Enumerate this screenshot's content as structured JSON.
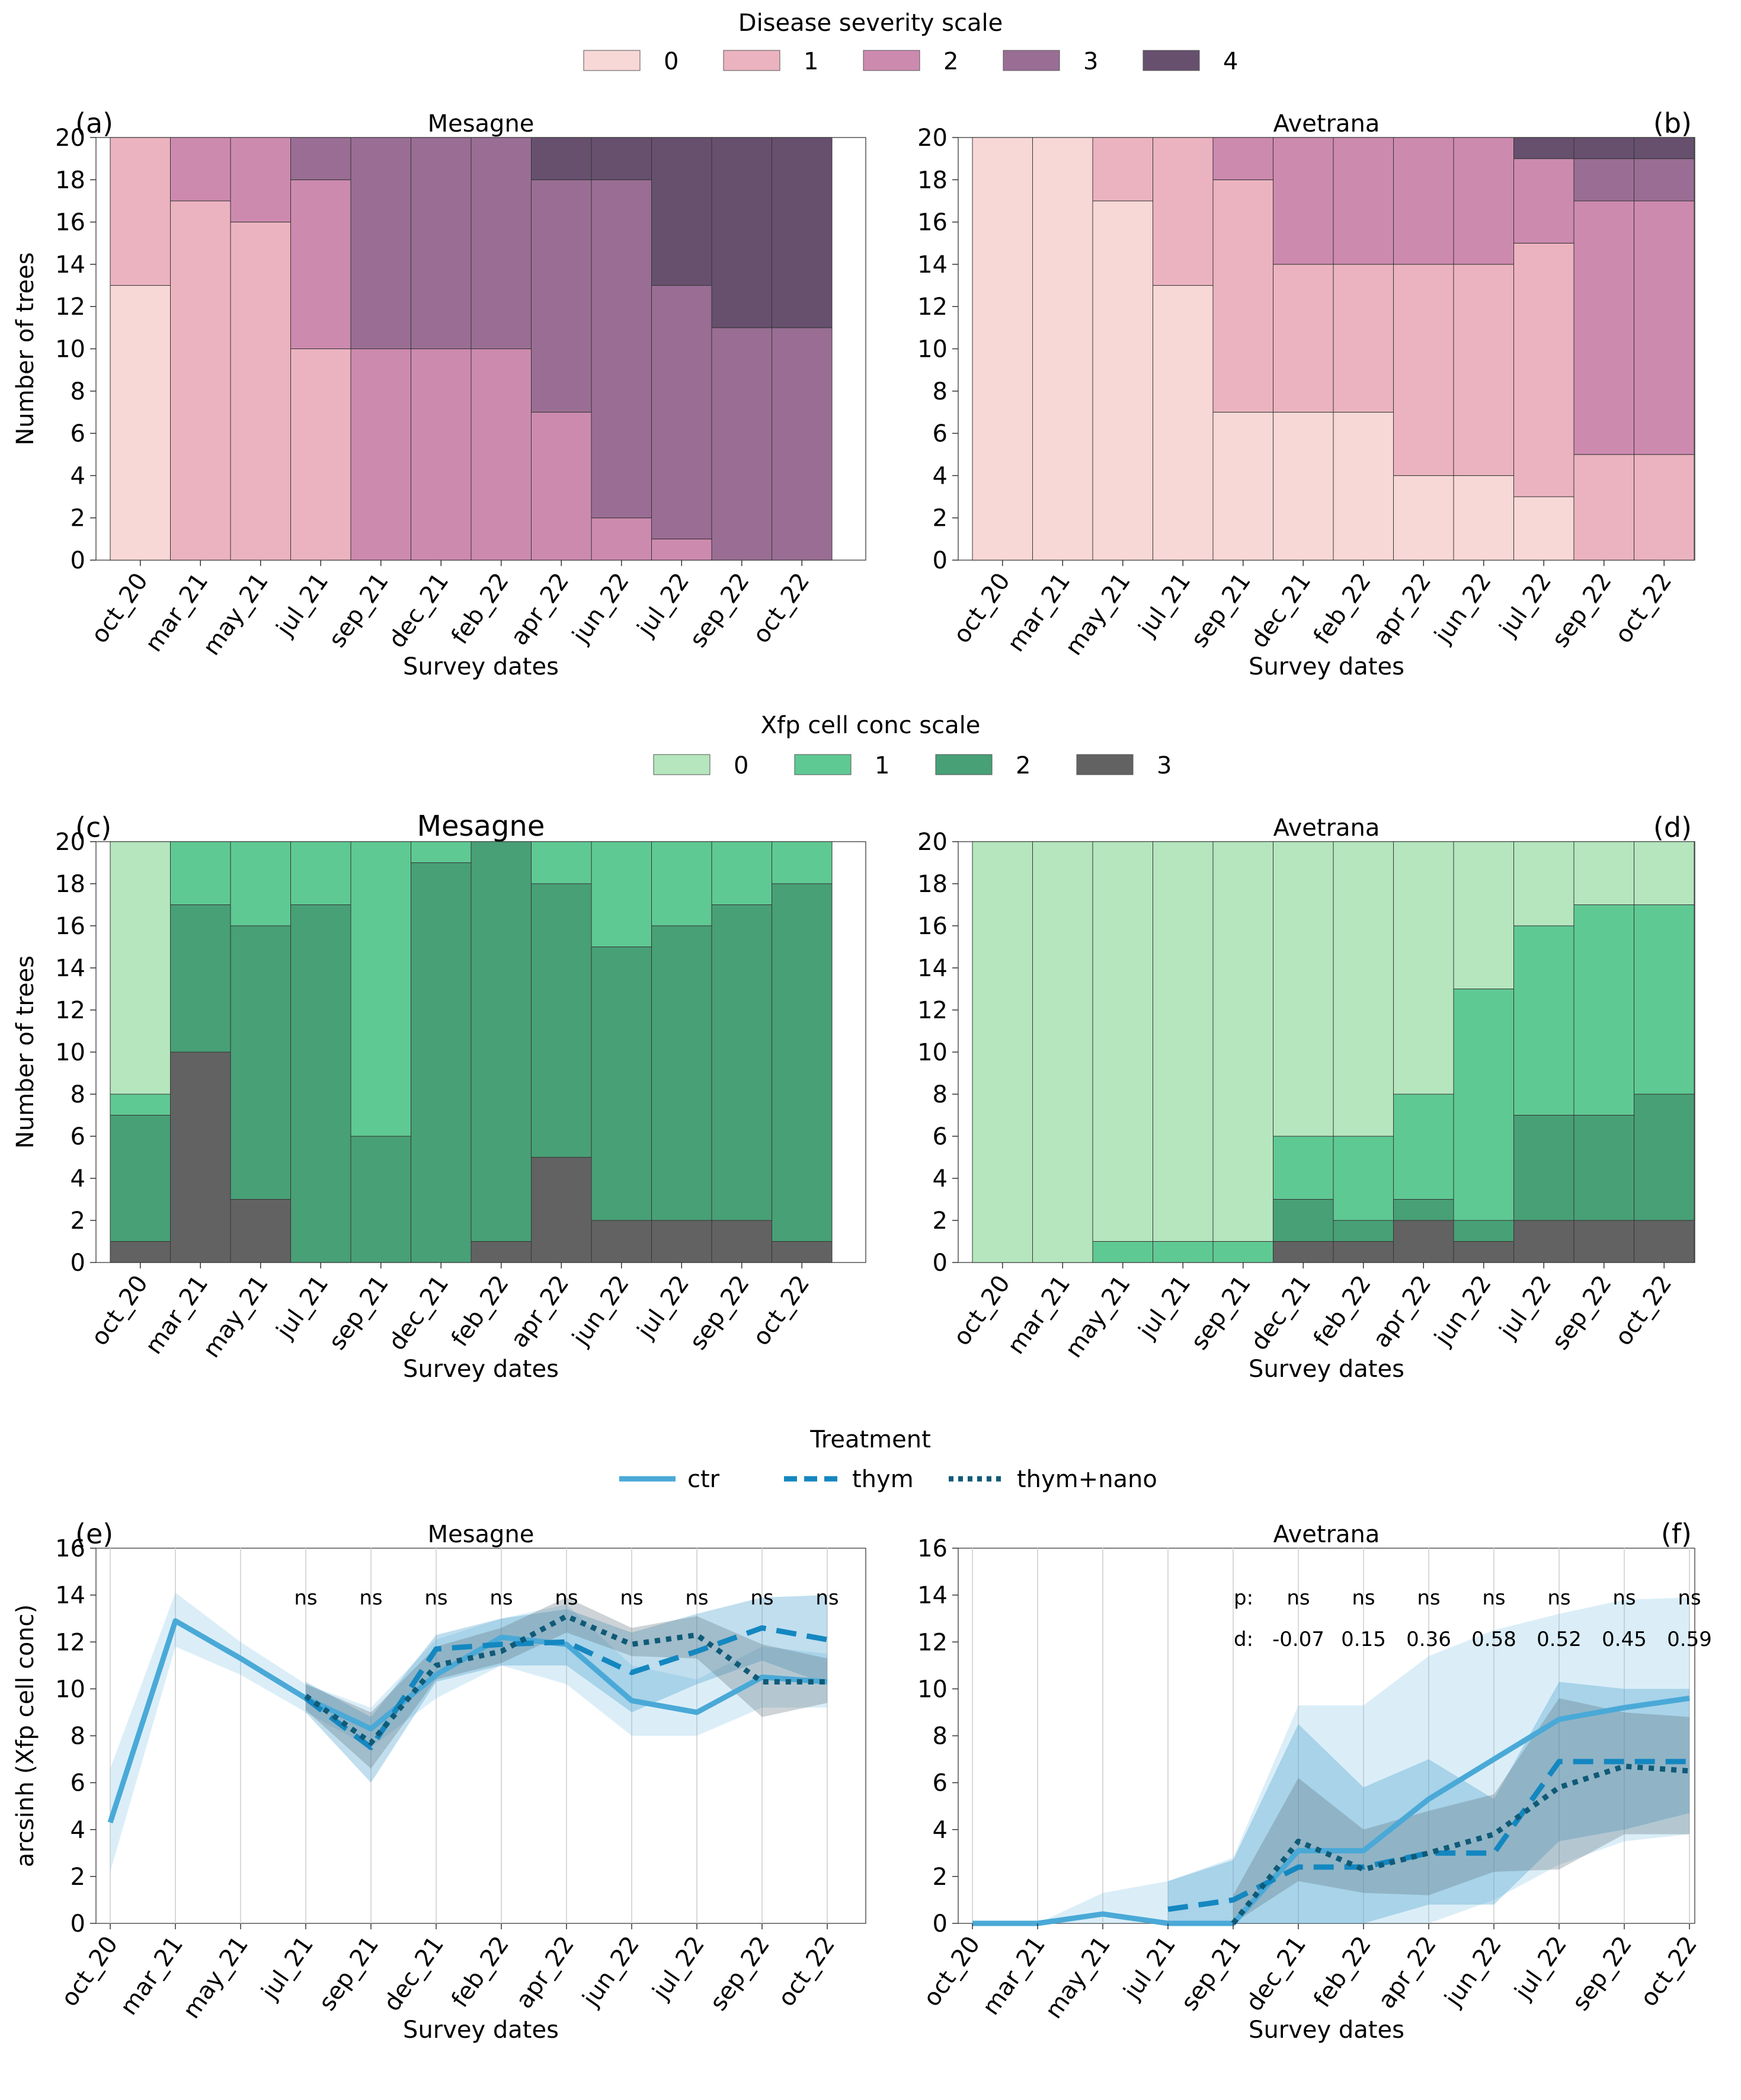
{
  "legends": {
    "severity": {
      "title": "Disease severity scale",
      "labels": [
        "0",
        "1",
        "2",
        "3",
        "4"
      ],
      "colors": [
        "#f7d8d6",
        "#ebb3bf",
        "#cd8aaf",
        "#9a6e94",
        "#66506e"
      ]
    },
    "xfp": {
      "title": "Xfp cell conc scale",
      "labels": [
        "0",
        "1",
        "2",
        "3"
      ],
      "colors": [
        "#b5e6be",
        "#5fc993",
        "#48a076",
        "#626262"
      ]
    },
    "treatment": {
      "title": "Treatment",
      "labels": [
        "ctr",
        "thym",
        "thym+nano"
      ],
      "colors": [
        "#4aa9d7",
        "#1487c0",
        "#0f5a77"
      ]
    }
  },
  "chart_data": [
    {
      "id": "a",
      "type": "bar",
      "stacked": true,
      "panel_label": "(a)",
      "title": "Mesagne",
      "xlabel": "Survey dates",
      "ylabel": "Number of trees",
      "ylim": [
        0,
        20
      ],
      "yticks": [
        "0",
        "2",
        "4",
        "6",
        "8",
        "10",
        "12",
        "14",
        "16",
        "18",
        "20"
      ],
      "categories": [
        "oct_20",
        "mar_21",
        "may_21",
        "jul_21",
        "sep_21",
        "dec_21",
        "feb_22",
        "apr_22",
        "jun_22",
        "jul_22",
        "sep_22",
        "oct_22"
      ],
      "series": [
        {
          "name": "0",
          "values": [
            13,
            0,
            0,
            0,
            0,
            0,
            0,
            0,
            0,
            0,
            0,
            0
          ]
        },
        {
          "name": "1",
          "values": [
            7,
            17,
            16,
            10,
            0,
            0,
            0,
            0,
            0,
            0,
            0,
            0
          ]
        },
        {
          "name": "2",
          "values": [
            0,
            3,
            4,
            8,
            10,
            10,
            10,
            7,
            2,
            1,
            0,
            0
          ]
        },
        {
          "name": "3",
          "values": [
            0,
            0,
            0,
            2,
            10,
            10,
            10,
            11,
            16,
            12,
            11,
            11
          ]
        },
        {
          "name": "4",
          "values": [
            0,
            0,
            0,
            0,
            0,
            0,
            0,
            2,
            2,
            7,
            9,
            9
          ]
        }
      ]
    },
    {
      "id": "b",
      "type": "bar",
      "stacked": true,
      "panel_label": "(b)",
      "title": "Avetrana",
      "xlabel": "Survey dates",
      "ylabel": "",
      "ylim": [
        0,
        20
      ],
      "yticks": [
        "0",
        "2",
        "4",
        "6",
        "8",
        "10",
        "12",
        "14",
        "16",
        "18",
        "20"
      ],
      "categories": [
        "oct_20",
        "mar_21",
        "may_21",
        "jul_21",
        "sep_21",
        "dec_21",
        "feb_22",
        "apr_22",
        "jun_22",
        "jul_22",
        "sep_22",
        "oct_22"
      ],
      "series": [
        {
          "name": "0",
          "values": [
            20,
            20,
            17,
            13,
            7,
            7,
            7,
            4,
            4,
            3,
            0,
            0
          ]
        },
        {
          "name": "1",
          "values": [
            0,
            0,
            3,
            7,
            11,
            7,
            7,
            10,
            10,
            12,
            5,
            5
          ]
        },
        {
          "name": "2",
          "values": [
            0,
            0,
            0,
            0,
            2,
            6,
            6,
            6,
            6,
            4,
            12,
            12
          ]
        },
        {
          "name": "3",
          "values": [
            0,
            0,
            0,
            0,
            0,
            0,
            0,
            0,
            0,
            0,
            2,
            2
          ]
        },
        {
          "name": "4",
          "values": [
            0,
            0,
            0,
            0,
            0,
            0,
            0,
            0,
            0,
            1,
            1,
            1
          ]
        }
      ]
    },
    {
      "id": "c",
      "type": "bar",
      "stacked": true,
      "panel_label": "(c)",
      "title": "Mesagne",
      "xlabel": "Survey dates",
      "ylabel": "Number of trees",
      "ylim": [
        0,
        20
      ],
      "yticks": [
        "0",
        "2",
        "4",
        "6",
        "8",
        "10",
        "12",
        "14",
        "16",
        "18",
        "20"
      ],
      "categories": [
        "oct_20",
        "mar_21",
        "may_21",
        "jul_21",
        "sep_21",
        "dec_21",
        "feb_22",
        "apr_22",
        "jun_22",
        "jul_22",
        "sep_22",
        "oct_22"
      ],
      "series": [
        {
          "name": "3",
          "values": [
            1,
            10,
            3,
            0,
            0,
            0,
            1,
            5,
            2,
            2,
            2,
            1
          ]
        },
        {
          "name": "2",
          "values": [
            6,
            7,
            13,
            17,
            6,
            19,
            19,
            13,
            13,
            14,
            15,
            17
          ]
        },
        {
          "name": "1",
          "values": [
            1,
            3,
            4,
            3,
            14,
            1,
            0,
            2,
            5,
            4,
            3,
            2
          ]
        },
        {
          "name": "0",
          "values": [
            12,
            0,
            0,
            0,
            0,
            0,
            0,
            0,
            0,
            0,
            0,
            0
          ]
        }
      ]
    },
    {
      "id": "d",
      "type": "bar",
      "stacked": true,
      "panel_label": "(d)",
      "title": "Avetrana",
      "xlabel": "Survey dates",
      "ylabel": "",
      "ylim": [
        0,
        20
      ],
      "yticks": [
        "0",
        "2",
        "4",
        "6",
        "8",
        "10",
        "12",
        "14",
        "16",
        "18",
        "20"
      ],
      "categories": [
        "oct_20",
        "mar_21",
        "may_21",
        "jul_21",
        "sep_21",
        "dec_21",
        "feb_22",
        "apr_22",
        "jun_22",
        "jul_22",
        "sep_22",
        "oct_22"
      ],
      "series": [
        {
          "name": "3",
          "values": [
            0,
            0,
            0,
            0,
            0,
            1,
            1,
            2,
            1,
            2,
            2,
            2
          ]
        },
        {
          "name": "2",
          "values": [
            0,
            0,
            0,
            0,
            0,
            2,
            1,
            1,
            1,
            5,
            5,
            6
          ]
        },
        {
          "name": "1",
          "values": [
            0,
            0,
            1,
            1,
            1,
            3,
            4,
            5,
            11,
            9,
            10,
            9
          ]
        },
        {
          "name": "0",
          "values": [
            20,
            20,
            19,
            19,
            19,
            14,
            14,
            12,
            7,
            4,
            3,
            3
          ]
        }
      ]
    },
    {
      "id": "e",
      "type": "line",
      "panel_label": "(e)",
      "title": "Mesagne",
      "xlabel": "Survey dates",
      "ylabel": "arcsinh (Xfp cell conc)",
      "ylim": [
        0,
        16
      ],
      "yticks": [
        "0",
        "2",
        "4",
        "6",
        "8",
        "10",
        "12",
        "14",
        "16"
      ],
      "categories": [
        "oct_20",
        "mar_21",
        "may_21",
        "jul_21",
        "sep_21",
        "dec_21",
        "feb_22",
        "apr_22",
        "jun_22",
        "jul_22",
        "sep_22",
        "oct_22"
      ],
      "annotations": [
        "",
        "",
        "",
        "ns",
        "ns",
        "ns",
        "ns",
        "ns",
        "ns",
        "ns",
        "ns",
        "ns"
      ],
      "series": [
        {
          "name": "ctr",
          "values": [
            4.3,
            12.9,
            11.3,
            9.6,
            8.3,
            10.6,
            12.2,
            11.9,
            9.5,
            9.0,
            10.5,
            10.3
          ],
          "lower": [
            2.2,
            11.8,
            10.6,
            9.0,
            7.5,
            9.6,
            11.0,
            10.2,
            8.0,
            8.0,
            9.2,
            9.2
          ],
          "upper": [
            6.6,
            14.1,
            12.0,
            10.2,
            9.2,
            12.1,
            13.0,
            13.6,
            11.0,
            10.4,
            11.8,
            11.5
          ]
        },
        {
          "name": "thym",
          "values": [
            null,
            null,
            null,
            9.6,
            7.5,
            11.7,
            11.9,
            12.0,
            10.7,
            11.6,
            12.6,
            12.1
          ],
          "lower": [
            null,
            null,
            null,
            9.0,
            6.0,
            10.3,
            11.0,
            11.0,
            9.0,
            10.2,
            11.2,
            10.2
          ],
          "upper": [
            null,
            null,
            null,
            10.3,
            8.8,
            12.3,
            13.0,
            13.4,
            12.4,
            13.2,
            13.9,
            14.0
          ]
        },
        {
          "name": "thym+nano",
          "values": [
            null,
            null,
            null,
            9.7,
            7.7,
            11.0,
            11.6,
            13.1,
            11.9,
            12.3,
            10.3,
            10.3
          ],
          "lower": [
            null,
            null,
            null,
            9.1,
            6.6,
            10.4,
            11.1,
            12.4,
            11.4,
            11.3,
            8.8,
            9.4
          ],
          "upper": [
            null,
            null,
            null,
            10.2,
            9.0,
            11.8,
            12.6,
            13.9,
            12.6,
            13.1,
            11.9,
            11.3
          ]
        }
      ]
    },
    {
      "id": "f",
      "type": "line",
      "panel_label": "(f)",
      "title": "Avetrana",
      "xlabel": "Survey dates",
      "ylabel": "",
      "ylim": [
        0,
        16
      ],
      "yticks": [
        "0",
        "2",
        "4",
        "6",
        "8",
        "10",
        "12",
        "14",
        "16"
      ],
      "categories": [
        "oct_20",
        "mar_21",
        "may_21",
        "jul_21",
        "sep_21",
        "dec_21",
        "feb_22",
        "apr_22",
        "jun_22",
        "jul_22",
        "sep_22",
        "oct_22"
      ],
      "stat_rows": {
        "p_label": "p:",
        "d_label": "d:",
        "p": [
          "",
          "",
          "",
          "",
          "",
          "ns",
          "ns",
          "ns",
          "ns",
          "ns",
          "ns",
          "ns"
        ],
        "d": [
          "",
          "",
          "",
          "",
          "",
          "-0.07",
          "0.15",
          "0.36",
          "0.58",
          "0.52",
          "0.45",
          "0.59"
        ]
      },
      "series": [
        {
          "name": "ctr",
          "values": [
            0,
            0,
            0.4,
            0,
            0,
            3.1,
            3.1,
            5.3,
            7.0,
            8.7,
            9.2,
            9.6
          ],
          "lower": [
            0,
            0,
            0,
            0,
            0,
            0,
            0,
            0,
            1.0,
            2.5,
            3.5,
            3.8
          ],
          "upper": [
            0,
            0,
            1.3,
            1.8,
            2.8,
            9.3,
            9.3,
            11.4,
            12.5,
            13.2,
            13.8,
            13.9
          ]
        },
        {
          "name": "thym",
          "values": [
            null,
            null,
            null,
            0.6,
            1.0,
            2.4,
            2.4,
            3.0,
            3.0,
            6.9,
            6.9,
            6.9
          ],
          "lower": [
            null,
            null,
            null,
            0,
            0,
            0,
            0,
            0.8,
            0.8,
            3.5,
            4.0,
            4.7
          ],
          "upper": [
            null,
            null,
            null,
            1.8,
            2.7,
            8.5,
            5.8,
            7.0,
            5.3,
            10.3,
            10.0,
            10.0
          ]
        },
        {
          "name": "thym+nano",
          "values": [
            null,
            null,
            null,
            null,
            0,
            3.5,
            2.3,
            3.0,
            3.8,
            5.8,
            6.7,
            6.5
          ],
          "lower": [
            null,
            null,
            null,
            null,
            0,
            1.8,
            1.3,
            1.2,
            2.2,
            2.3,
            3.8,
            3.8
          ],
          "upper": [
            null,
            null,
            null,
            null,
            1.2,
            6.2,
            4.0,
            4.8,
            5.5,
            9.6,
            9.0,
            8.8
          ]
        }
      ]
    }
  ]
}
